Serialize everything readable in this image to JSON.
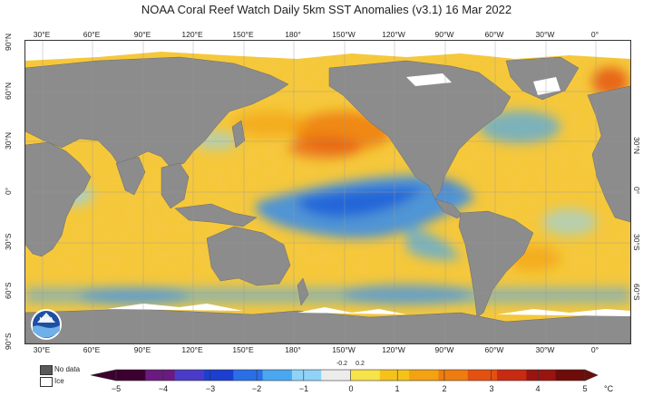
{
  "title": "NOAA Coral Reef Watch Daily 5km SST Anomalies  (v3.1)   16 Mar 2022",
  "longitude_labels": [
    "30°E",
    "60°E",
    "90°E",
    "120°E",
    "150°E",
    "180°",
    "150°W",
    "120°W",
    "90°W",
    "60°W",
    "30°W",
    "0°"
  ],
  "latitude_labels_left": [
    "90°N",
    "60°N",
    "30°N",
    "0°",
    "30°S",
    "60°S",
    "90°S"
  ],
  "latitude_labels_right": [
    "30°N",
    "0°",
    "30°S",
    "60°S"
  ],
  "legend": {
    "no_data": "No data",
    "ice": "Ice",
    "no_data_color": "#595959",
    "ice_color": "#ffffff"
  },
  "colorbar": {
    "ticks": [
      "−5",
      "−4",
      "−3",
      "−2",
      "−1",
      "0",
      "1",
      "2",
      "3",
      "4",
      "5"
    ],
    "small_ticks": [
      "-0.2",
      "0.2"
    ],
    "unit": "°C",
    "colors": [
      "#3b0030",
      "#6a1a80",
      "#4a3cc8",
      "#1c3fd0",
      "#2a6fe8",
      "#4aa8f0",
      "#8fd3f7",
      "#ececec",
      "#f7e34a",
      "#f5c21a",
      "#f3a212",
      "#ee7c10",
      "#e45010",
      "#c92a12",
      "#9a1410",
      "#6e0c0a"
    ]
  },
  "logo_text": "NOAA",
  "colors": {
    "land": "#8c8c8c",
    "ocean_warm": "#f5c83a",
    "ocean_cool": "#3f8fe6"
  }
}
